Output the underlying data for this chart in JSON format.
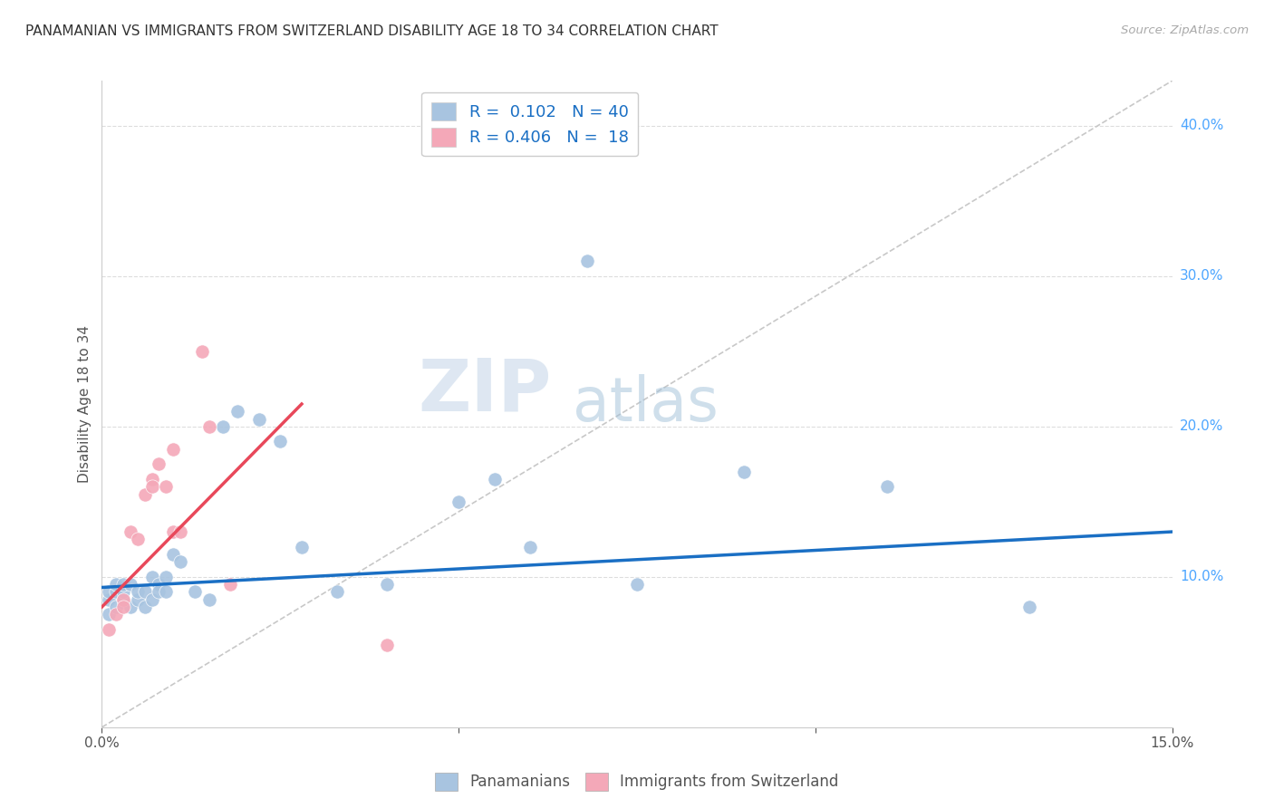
{
  "title": "PANAMANIAN VS IMMIGRANTS FROM SWITZERLAND DISABILITY AGE 18 TO 34 CORRELATION CHART",
  "source": "Source: ZipAtlas.com",
  "ylabel": "Disability Age 18 to 34",
  "xlim": [
    0.0,
    0.15
  ],
  "ylim": [
    0.0,
    0.43
  ],
  "x_ticks": [
    0.0,
    0.05,
    0.1,
    0.15
  ],
  "x_tick_labels": [
    "0.0%",
    "",
    "",
    "15.0%"
  ],
  "y_ticks_right": [
    0.1,
    0.2,
    0.3,
    0.4
  ],
  "y_tick_labels_right": [
    "10.0%",
    "20.0%",
    "30.0%",
    "40.0%"
  ],
  "blue_R": "0.102",
  "blue_N": "40",
  "pink_R": "0.406",
  "pink_N": "18",
  "blue_color": "#a8c4e0",
  "pink_color": "#f4a8b8",
  "blue_line_color": "#1a6fc4",
  "pink_line_color": "#e8485a",
  "ref_line_color": "#c8c8c8",
  "watermark_zip": "ZIP",
  "watermark_atlas": "atlas",
  "blue_scatter_x": [
    0.001,
    0.001,
    0.001,
    0.002,
    0.002,
    0.002,
    0.003,
    0.003,
    0.003,
    0.004,
    0.004,
    0.005,
    0.005,
    0.006,
    0.006,
    0.007,
    0.007,
    0.008,
    0.008,
    0.009,
    0.009,
    0.01,
    0.011,
    0.013,
    0.015,
    0.017,
    0.019,
    0.022,
    0.025,
    0.028,
    0.033,
    0.04,
    0.05,
    0.055,
    0.06,
    0.068,
    0.075,
    0.09,
    0.11,
    0.13
  ],
  "blue_scatter_y": [
    0.085,
    0.09,
    0.075,
    0.08,
    0.09,
    0.095,
    0.085,
    0.09,
    0.095,
    0.08,
    0.095,
    0.085,
    0.09,
    0.08,
    0.09,
    0.1,
    0.085,
    0.095,
    0.09,
    0.1,
    0.09,
    0.115,
    0.11,
    0.09,
    0.085,
    0.2,
    0.21,
    0.205,
    0.19,
    0.12,
    0.09,
    0.095,
    0.15,
    0.165,
    0.12,
    0.31,
    0.095,
    0.17,
    0.16,
    0.08
  ],
  "pink_scatter_x": [
    0.001,
    0.002,
    0.003,
    0.003,
    0.004,
    0.005,
    0.006,
    0.007,
    0.007,
    0.008,
    0.009,
    0.01,
    0.01,
    0.011,
    0.014,
    0.015,
    0.018,
    0.04
  ],
  "pink_scatter_y": [
    0.065,
    0.075,
    0.085,
    0.08,
    0.13,
    0.125,
    0.155,
    0.165,
    0.16,
    0.175,
    0.16,
    0.185,
    0.13,
    0.13,
    0.25,
    0.2,
    0.095,
    0.055
  ],
  "blue_trend_x": [
    0.0,
    0.15
  ],
  "blue_trend_y": [
    0.093,
    0.13
  ],
  "pink_trend_x": [
    0.0,
    0.028
  ],
  "pink_trend_y": [
    0.08,
    0.215
  ],
  "ref_trend_x": [
    0.0,
    0.15
  ],
  "ref_trend_y": [
    0.0,
    0.43
  ],
  "legend_labels": [
    "Panamanians",
    "Immigrants from Switzerland"
  ]
}
